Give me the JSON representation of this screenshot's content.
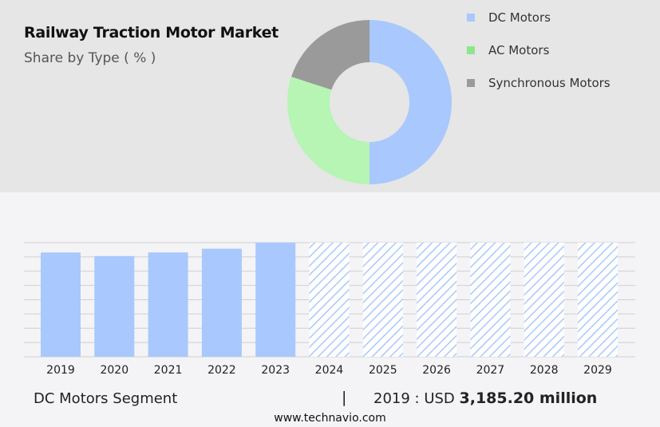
{
  "title": "Railway Traction Motor Market",
  "subtitle": "Share by Type ( % )",
  "footer": {
    "segment": "DC Motors Segment",
    "separator": "|",
    "year_label": "2019 : USD",
    "value": "3,185.20 million",
    "url": "www.technavio.com"
  },
  "colors": {
    "dc": "#a9c8fd",
    "ac": "#b6f5b4",
    "sync": "#9a9a9a",
    "legend_dc": "#a9c8fd",
    "legend_ac": "#8fe58c",
    "legend_sync": "#9a9a9a"
  },
  "chart_data": [
    {
      "type": "pie",
      "variant": "donut",
      "title": "",
      "legend": "right",
      "slices": [
        {
          "name": "DC Motors",
          "value": 50,
          "color": "#a9c8fd"
        },
        {
          "name": "AC Motors",
          "value": 30,
          "color": "#b6f5b4"
        },
        {
          "name": "Synchronous Motors",
          "value": 20,
          "color": "#9a9a9a"
        }
      ]
    },
    {
      "type": "bar",
      "title": "",
      "xlabel": "",
      "ylabel": "",
      "categories": [
        "2019",
        "2020",
        "2021",
        "2022",
        "2023",
        "2024",
        "2025",
        "2026",
        "2027",
        "2028",
        "2029"
      ],
      "values": [
        3185.2,
        3075,
        3185,
        3300,
        3485,
        3485,
        3485,
        3485,
        3485,
        3485,
        3485
      ],
      "forecast_from": "2024",
      "ylim": [
        0,
        3485
      ],
      "grid": true,
      "y_axis_labels_visible": false
    }
  ]
}
